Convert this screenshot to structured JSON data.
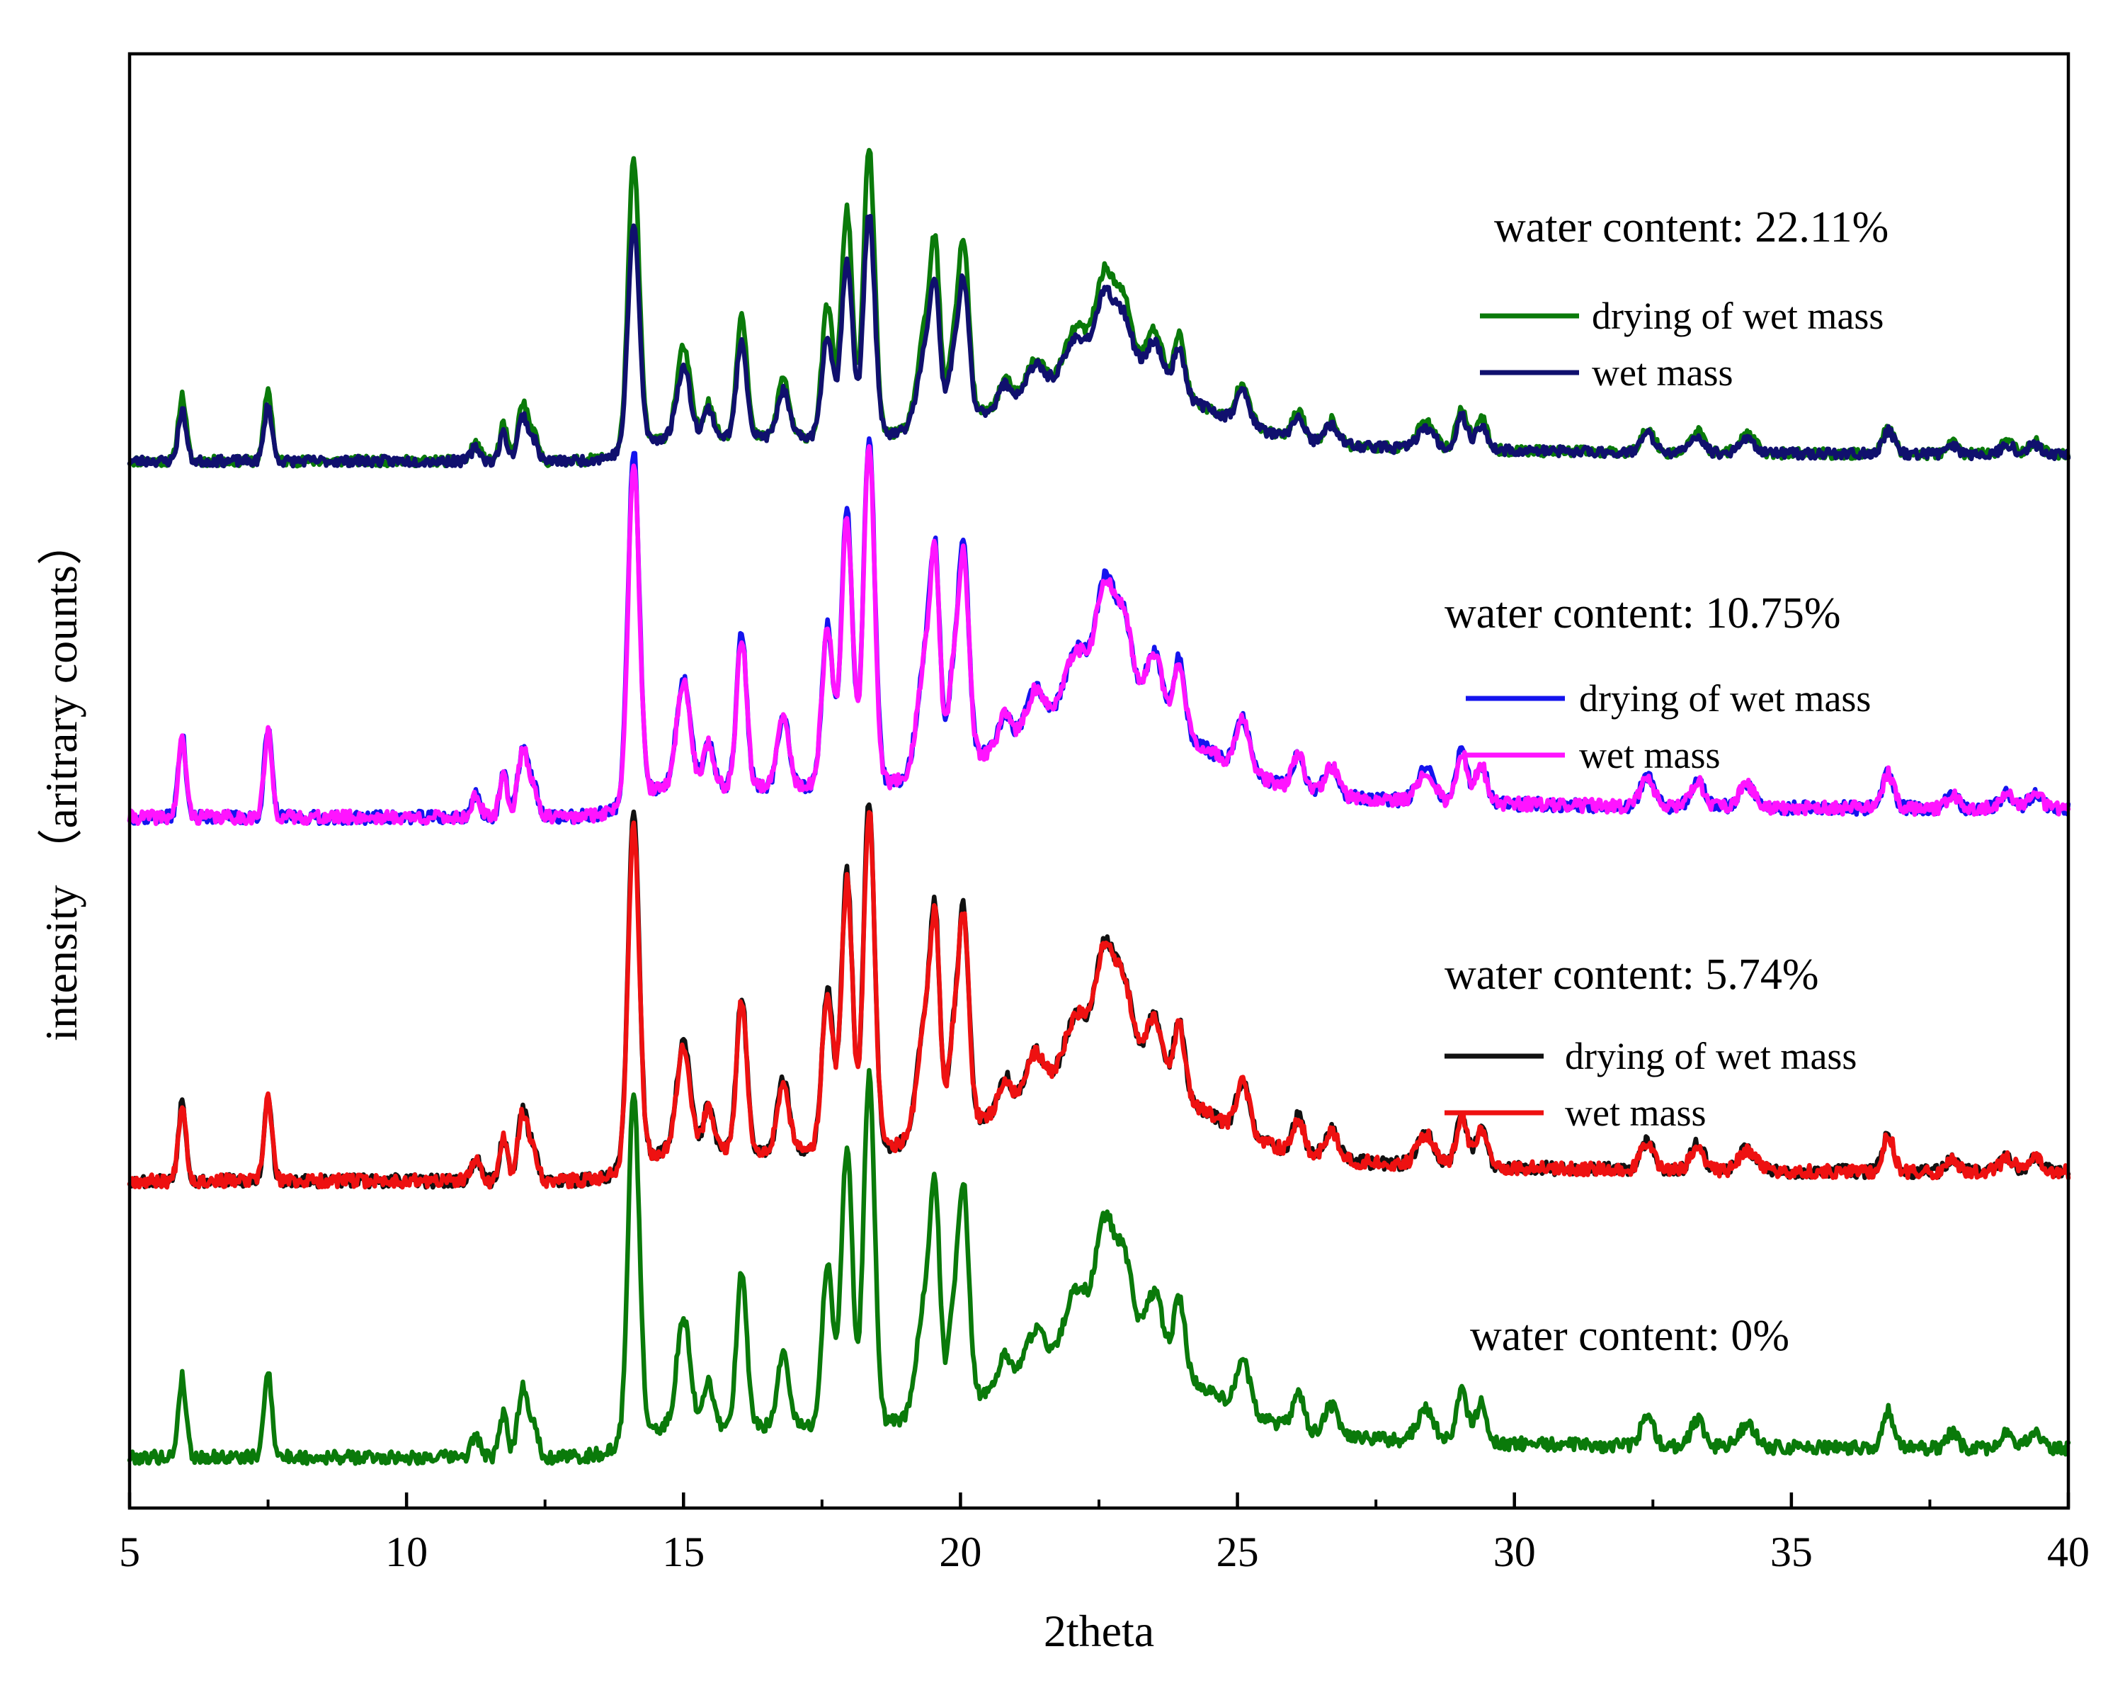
{
  "chart_data": {
    "type": "line",
    "xlabel": "2theta",
    "ylabel": "intensity  （aritrary counts）",
    "xlim": [
      5,
      40
    ],
    "ylim": [
      0,
      100
    ],
    "xticks": [
      5,
      10,
      15,
      20,
      25,
      30,
      35,
      40
    ],
    "xtick_labels": [
      "5",
      "10",
      "15",
      "20",
      "25",
      "30",
      "35",
      "40"
    ],
    "y_tick_labels_shown": false,
    "grid": false,
    "groups": [
      {
        "label": "water content: 22.11%",
        "offset": 72,
        "scale": 0.78,
        "series": [
          {
            "name": "drying of wet mass",
            "color": "#0a7a0a",
            "seed": 11,
            "peak_mult": 1.05
          },
          {
            "name": "wet mass",
            "color": "#10106e",
            "seed": 23,
            "peak_mult": 0.82
          }
        ]
      },
      {
        "label": "water content: 10.75%",
        "offset": 47.5,
        "scale": 1.0,
        "series": [
          {
            "name": "drying of wet mass",
            "color": "#1414ee",
            "seed": 37,
            "peak_mult": 1.0
          },
          {
            "name": "wet mass",
            "color": "#ff14ff",
            "seed": 41,
            "peak_mult": 0.97
          }
        ]
      },
      {
        "label": "water content: 5.74%",
        "offset": 22.5,
        "scale": 1.0,
        "series": [
          {
            "name": "drying of wet mass",
            "color": "#111111",
            "seed": 53,
            "peak_mult": 1.0
          },
          {
            "name": "wet mass",
            "color": "#ee1111",
            "seed": 67,
            "peak_mult": 0.97
          }
        ]
      },
      {
        "label": "water content: 0%",
        "offset": 3.5,
        "scale": 1.0,
        "series": [
          {
            "name": "",
            "color": "#0a7a0a",
            "seed": 79,
            "peak_mult": 1.0
          }
        ]
      }
    ],
    "peaks": [
      [
        5.95,
        5.5,
        0.07
      ],
      [
        7.5,
        6.0,
        0.07
      ],
      [
        11.25,
        1.5,
        0.08
      ],
      [
        11.75,
        3.0,
        0.07
      ],
      [
        12.1,
        4.8,
        0.09
      ],
      [
        12.3,
        2.0,
        0.08
      ],
      [
        14.1,
        24.0,
        0.1
      ],
      [
        15.0,
        7.5,
        0.12
      ],
      [
        15.45,
        3.0,
        0.09
      ],
      [
        16.05,
        10.5,
        0.09
      ],
      [
        16.8,
        5.0,
        0.1
      ],
      [
        17.6,
        11.0,
        0.1
      ],
      [
        17.95,
        19.0,
        0.1
      ],
      [
        18.35,
        24.0,
        0.1
      ],
      [
        19.4,
        9.0,
        0.16
      ],
      [
        19.55,
        10.0,
        0.08
      ],
      [
        19.85,
        5.0,
        0.08
      ],
      [
        20.05,
        15.0,
        0.1
      ],
      [
        20.8,
        2.0,
        0.1
      ],
      [
        21.35,
        2.5,
        0.15
      ],
      [
        22.1,
        4.0,
        0.2
      ],
      [
        22.6,
        8.0,
        0.16
      ],
      [
        22.95,
        6.0,
        0.16
      ],
      [
        23.5,
        4.5,
        0.15
      ],
      [
        23.95,
        5.0,
        0.1
      ],
      [
        25.1,
        3.5,
        0.12
      ],
      [
        26.1,
        2.5,
        0.1
      ],
      [
        26.7,
        2.0,
        0.12
      ],
      [
        28.4,
        2.2,
        0.15
      ],
      [
        29.05,
        3.5,
        0.1
      ],
      [
        29.4,
        2.7,
        0.1
      ],
      [
        32.4,
        2.0,
        0.12
      ],
      [
        33.3,
        1.8,
        0.12
      ],
      [
        34.2,
        1.5,
        0.15
      ],
      [
        36.75,
        2.5,
        0.1
      ],
      [
        37.9,
        1.0,
        0.1
      ],
      [
        38.9,
        1.0,
        0.12
      ],
      [
        39.4,
        1.0,
        0.12
      ]
    ],
    "hump": {
      "center": 22.6,
      "height": 6.0,
      "width": 1.6
    }
  }
}
